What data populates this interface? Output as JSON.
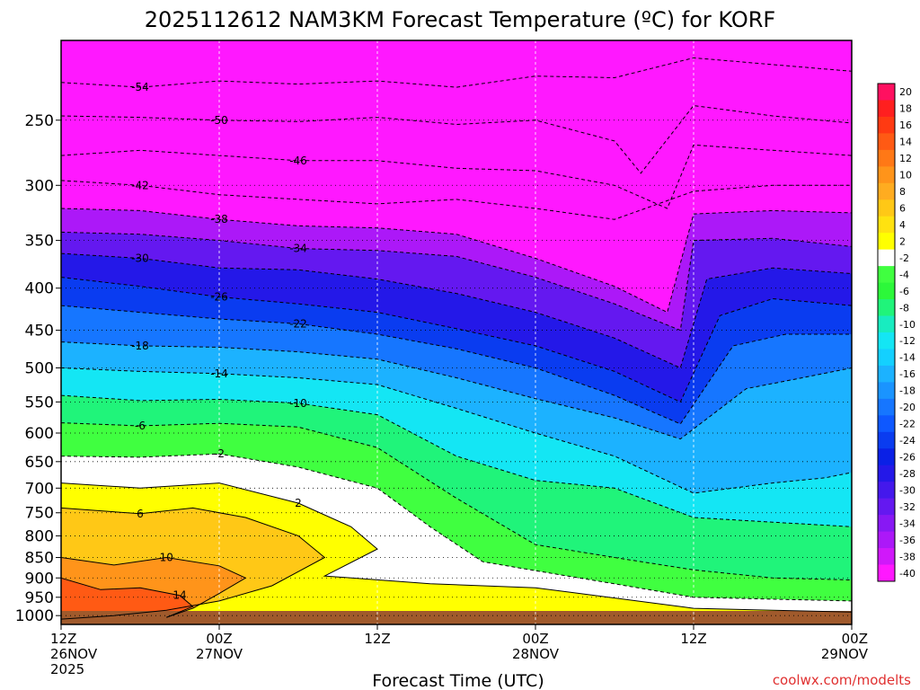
{
  "chart_data": {
    "type": "heatmap",
    "title": "2025112612 NAM3KM Forecast Temperature (ºC) for KORF",
    "xlabel": "Forecast Time (UTC)",
    "ylabel": "",
    "credit": "coolwx.com/modelts",
    "y_ticks": [
      250,
      300,
      350,
      400,
      450,
      500,
      550,
      600,
      650,
      700,
      750,
      800,
      850,
      900,
      950,
      1000
    ],
    "y_tick_labels": [
      "250",
      "300",
      "350",
      "400",
      "450",
      "500",
      "550",
      "600",
      "650",
      "700",
      "750",
      "800",
      "850",
      "900",
      "950",
      "1000"
    ],
    "ylim": [
      200,
      1025
    ],
    "x_hours": [
      0,
      12,
      24,
      36,
      48,
      60
    ],
    "x_tick_labels": [
      {
        "line1": "12Z",
        "line2": "26NOV",
        "line3": "2025"
      },
      {
        "line1": "00Z",
        "line2": "27NOV",
        "line3": ""
      },
      {
        "line1": "12Z",
        "line2": "",
        "line3": ""
      },
      {
        "line1": "00Z",
        "line2": "28NOV",
        "line3": ""
      },
      {
        "line1": "12Z",
        "line2": "",
        "line3": ""
      },
      {
        "line1": "00Z",
        "line2": "29NOV",
        "line3": ""
      }
    ],
    "colorbar_labels": [
      "20",
      "18",
      "16",
      "14",
      "12",
      "10",
      "8",
      "6",
      "4",
      "2",
      "-2",
      "-4",
      "-6",
      "-8",
      "-10",
      "-12",
      "-14",
      "-16",
      "-18",
      "-20",
      "-22",
      "-24",
      "-26",
      "-28",
      "-30",
      "-32",
      "-34",
      "-36",
      "-38",
      "-40"
    ],
    "colorbar_colors": [
      "#ff1060",
      "#ff1f1f",
      "#ff3a12",
      "#ff5a14",
      "#ff7816",
      "#ff941a",
      "#ffac20",
      "#ffc816",
      "#ffe210",
      "#ffff00",
      "#ffffff",
      "#40ff40",
      "#2cf83a",
      "#20f47a",
      "#18ecc0",
      "#14e6f4",
      "#14d0ff",
      "#1cb2ff",
      "#1a94ff",
      "#1676ff",
      "#0e58ff",
      "#0a3cf0",
      "#0a20e6",
      "#2418e8",
      "#4418ec",
      "#6418f0",
      "#8818f4",
      "#ac18f8",
      "#d018fa",
      "#ff18ff"
    ],
    "isotherms": [
      {
        "label": "-54",
        "points": [
          [
            0,
            225
          ],
          [
            6,
            228
          ],
          [
            12,
            224
          ],
          [
            18,
            226
          ],
          [
            24,
            224
          ],
          [
            30,
            228
          ],
          [
            36,
            221
          ],
          [
            42,
            222
          ],
          [
            48,
            210
          ],
          [
            54,
            214
          ],
          [
            60,
            218
          ]
        ]
      },
      {
        "label": "-50",
        "points": [
          [
            0,
            247
          ],
          [
            6,
            248
          ],
          [
            12,
            250
          ],
          [
            18,
            251
          ],
          [
            24,
            248
          ],
          [
            30,
            253
          ],
          [
            36,
            250
          ],
          [
            42,
            265
          ],
          [
            44,
            290
          ],
          [
            48,
            240
          ],
          [
            54,
            247
          ],
          [
            60,
            252
          ]
        ]
      },
      {
        "label": "-46",
        "points": [
          [
            0,
            276
          ],
          [
            6,
            272
          ],
          [
            12,
            276
          ],
          [
            18,
            280
          ],
          [
            24,
            280
          ],
          [
            30,
            286
          ],
          [
            36,
            288
          ],
          [
            42,
            300
          ],
          [
            46,
            320
          ],
          [
            48,
            268
          ],
          [
            54,
            272
          ],
          [
            60,
            276
          ]
        ]
      },
      {
        "label": "-42",
        "points": [
          [
            0,
            296
          ],
          [
            6,
            300
          ],
          [
            12,
            308
          ],
          [
            18,
            312
          ],
          [
            24,
            316
          ],
          [
            30,
            312
          ],
          [
            36,
            320
          ],
          [
            42,
            330
          ],
          [
            48,
            305
          ],
          [
            54,
            300
          ],
          [
            60,
            300
          ]
        ]
      },
      {
        "label": "-38",
        "points": [
          [
            0,
            320
          ],
          [
            6,
            322
          ],
          [
            12,
            330
          ],
          [
            18,
            336
          ],
          [
            24,
            338
          ],
          [
            30,
            344
          ],
          [
            36,
            368
          ],
          [
            42,
            398
          ],
          [
            46,
            428
          ],
          [
            48,
            325
          ],
          [
            54,
            322
          ],
          [
            60,
            324
          ]
        ]
      },
      {
        "label": "-34",
        "points": [
          [
            0,
            342
          ],
          [
            6,
            344
          ],
          [
            12,
            350
          ],
          [
            18,
            358
          ],
          [
            24,
            360
          ],
          [
            30,
            366
          ],
          [
            36,
            388
          ],
          [
            42,
            418
          ],
          [
            47,
            450
          ],
          [
            48,
            350
          ],
          [
            54,
            348
          ],
          [
            60,
            356
          ]
        ]
      },
      {
        "label": "-30",
        "points": [
          [
            0,
            363
          ],
          [
            6,
            368
          ],
          [
            12,
            378
          ],
          [
            18,
            380
          ],
          [
            24,
            390
          ],
          [
            30,
            406
          ],
          [
            36,
            428
          ],
          [
            42,
            460
          ],
          [
            47,
            500
          ],
          [
            49,
            390
          ],
          [
            54,
            378
          ],
          [
            60,
            384
          ]
        ]
      },
      {
        "label": "-26",
        "points": [
          [
            0,
            388
          ],
          [
            6,
            398
          ],
          [
            12,
            410
          ],
          [
            18,
            418
          ],
          [
            24,
            428
          ],
          [
            30,
            448
          ],
          [
            36,
            470
          ],
          [
            42,
            505
          ],
          [
            47,
            550
          ],
          [
            50,
            432
          ],
          [
            54,
            412
          ],
          [
            60,
            420
          ]
        ]
      },
      {
        "label": "-22",
        "points": [
          [
            0,
            420
          ],
          [
            6,
            428
          ],
          [
            12,
            436
          ],
          [
            18,
            442
          ],
          [
            24,
            455
          ],
          [
            30,
            474
          ],
          [
            36,
            500
          ],
          [
            42,
            540
          ],
          [
            47,
            585
          ],
          [
            51,
            470
          ],
          [
            55,
            455
          ],
          [
            60,
            455
          ]
        ]
      },
      {
        "label": "-18",
        "points": [
          [
            0,
            465
          ],
          [
            6,
            470
          ],
          [
            12,
            472
          ],
          [
            18,
            478
          ],
          [
            24,
            488
          ],
          [
            30,
            514
          ],
          [
            36,
            545
          ],
          [
            42,
            575
          ],
          [
            47,
            610
          ],
          [
            52,
            530
          ],
          [
            56,
            515
          ],
          [
            60,
            500
          ]
        ]
      },
      {
        "label": "-14",
        "points": [
          [
            0,
            500
          ],
          [
            6,
            505
          ],
          [
            12,
            508
          ],
          [
            18,
            514
          ],
          [
            24,
            524
          ],
          [
            30,
            560
          ],
          [
            36,
            600
          ],
          [
            42,
            640
          ],
          [
            48,
            710
          ],
          [
            54,
            690
          ],
          [
            58,
            680
          ],
          [
            60,
            670
          ]
        ]
      },
      {
        "label": "-10",
        "points": [
          [
            0,
            540
          ],
          [
            6,
            548
          ],
          [
            12,
            546
          ],
          [
            18,
            552
          ],
          [
            24,
            570
          ],
          [
            30,
            640
          ],
          [
            36,
            685
          ],
          [
            42,
            700
          ],
          [
            48,
            760
          ],
          [
            54,
            770
          ],
          [
            60,
            780
          ]
        ]
      },
      {
        "label": "-6",
        "points": [
          [
            0,
            583
          ],
          [
            6,
            588
          ],
          [
            12,
            584
          ],
          [
            18,
            590
          ],
          [
            24,
            625
          ],
          [
            30,
            720
          ],
          [
            36,
            820
          ],
          [
            42,
            850
          ],
          [
            48,
            880
          ],
          [
            54,
            900
          ],
          [
            60,
            905
          ]
        ]
      },
      {
        "label": "-2",
        "points": [
          [
            0,
            640
          ],
          [
            6,
            642
          ],
          [
            12,
            636
          ],
          [
            18,
            660
          ],
          [
            24,
            700
          ],
          [
            28,
            780
          ],
          [
            32,
            860
          ],
          [
            36,
            882
          ],
          [
            42,
            915
          ],
          [
            48,
            950
          ],
          [
            54,
            955
          ],
          [
            60,
            960
          ]
        ]
      },
      {
        "label": "2",
        "points": [
          [
            0,
            690
          ],
          [
            6,
            700
          ],
          [
            12,
            690
          ],
          [
            18,
            730
          ],
          [
            22,
            780
          ],
          [
            24,
            830
          ],
          [
            20,
            895
          ],
          [
            28,
            915
          ],
          [
            36,
            925
          ],
          [
            48,
            980
          ],
          [
            54,
            985
          ],
          [
            60,
            990
          ]
        ]
      },
      {
        "label": "6",
        "points": [
          [
            0,
            740
          ],
          [
            6,
            752
          ],
          [
            10,
            740
          ],
          [
            14,
            760
          ],
          [
            18,
            800
          ],
          [
            20,
            850
          ],
          [
            16,
            920
          ],
          [
            12,
            960
          ],
          [
            8,
            985
          ],
          [
            4,
            1000
          ],
          [
            0,
            1010
          ]
        ]
      },
      {
        "label": "10",
        "points": [
          [
            0,
            850
          ],
          [
            4,
            868
          ],
          [
            8,
            850
          ],
          [
            12,
            870
          ],
          [
            14,
            900
          ],
          [
            12,
            940
          ],
          [
            10,
            980
          ],
          [
            8,
            1005
          ]
        ]
      },
      {
        "label": "14",
        "points": [
          [
            0,
            900
          ],
          [
            3,
            930
          ],
          [
            6,
            925
          ],
          [
            9,
            945
          ],
          [
            10,
            975
          ],
          [
            8,
            1005
          ]
        ]
      }
    ]
  }
}
